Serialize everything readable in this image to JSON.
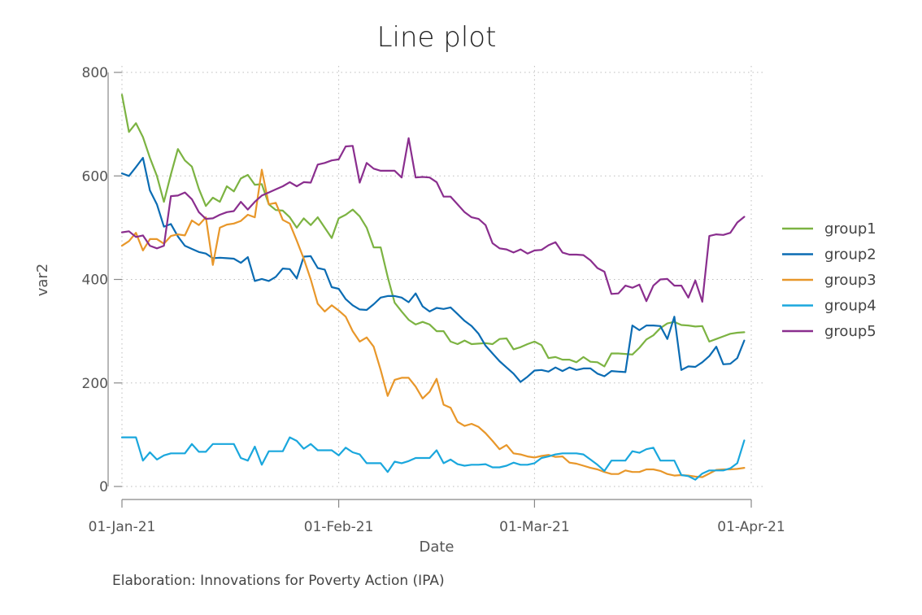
{
  "chart_data": {
    "type": "line",
    "title": "Line plot",
    "xlabel": "Date",
    "ylabel": "var2",
    "caption": "Elaboration: Innovations for Poverty Action (IPA)",
    "ylim": [
      0,
      800
    ],
    "xlim_days": [
      0,
      90
    ],
    "yticks": [
      0,
      200,
      400,
      600,
      800
    ],
    "xticks": [
      {
        "day": 0,
        "label": "01-Jan-21"
      },
      {
        "day": 31,
        "label": "01-Feb-21"
      },
      {
        "day": 59,
        "label": "01-Mar-21"
      },
      {
        "day": 90,
        "label": "01-Apr-21"
      }
    ],
    "grid": true,
    "legend_position": "right",
    "series": [
      {
        "name": "group1",
        "color": "#7cb342",
        "values": [
          757,
          685,
          702,
          675,
          635,
          600,
          550,
          603,
          652,
          630,
          618,
          575,
          542,
          558,
          550,
          580,
          570,
          595,
          602,
          583,
          584,
          545,
          534,
          533,
          520,
          500,
          518,
          505,
          520,
          500,
          480,
          518,
          525,
          535,
          522,
          500,
          462,
          462,
          405,
          355,
          338,
          322,
          313,
          318,
          313,
          300,
          300,
          280,
          275,
          282,
          275,
          276,
          277,
          275,
          285,
          286,
          265,
          269,
          275,
          280,
          273,
          248,
          250,
          245,
          245,
          240,
          250,
          241,
          240,
          232,
          257,
          257,
          256,
          255,
          268,
          284,
          292,
          306,
          315,
          318,
          312,
          311,
          309,
          310,
          280,
          285,
          290,
          295,
          297,
          298
        ]
      },
      {
        "name": "group2",
        "color": "#0b6cb3",
        "values": [
          605,
          600,
          617,
          635,
          572,
          545,
          502,
          507,
          483,
          465,
          459,
          453,
          450,
          441,
          442,
          441,
          440,
          432,
          443,
          397,
          401,
          397,
          405,
          421,
          420,
          402,
          444,
          445,
          422,
          419,
          385,
          382,
          362,
          350,
          342,
          341,
          352,
          365,
          368,
          368,
          365,
          356,
          373,
          348,
          338,
          345,
          343,
          346,
          333,
          320,
          310,
          295,
          272,
          257,
          242,
          230,
          218,
          202,
          212,
          224,
          225,
          222,
          230,
          223,
          230,
          225,
          228,
          228,
          218,
          213,
          223,
          222,
          221,
          311,
          302,
          311,
          311,
          310,
          285,
          328,
          225,
          232,
          231,
          240,
          252,
          270,
          236,
          237,
          248,
          282
        ]
      },
      {
        "name": "group3",
        "color": "#e8972a",
        "values": [
          465,
          474,
          490,
          456,
          478,
          478,
          469,
          484,
          487,
          485,
          514,
          505,
          520,
          428,
          500,
          506,
          508,
          513,
          525,
          520,
          612,
          545,
          548,
          515,
          508,
          475,
          440,
          400,
          353,
          338,
          350,
          340,
          328,
          300,
          280,
          288,
          270,
          225,
          175,
          206,
          210,
          210,
          193,
          170,
          183,
          208,
          158,
          152,
          125,
          117,
          121,
          115,
          103,
          88,
          72,
          80,
          64,
          62,
          58,
          56,
          59,
          61,
          57,
          58,
          46,
          44,
          40,
          36,
          33,
          28,
          24,
          24,
          31,
          28,
          28,
          33,
          33,
          30,
          24,
          21,
          22,
          21,
          19,
          18,
          25,
          32,
          33,
          33,
          34,
          36
        ]
      },
      {
        "name": "group4",
        "color": "#1aa7dd",
        "values": [
          95,
          95,
          95,
          50,
          66,
          52,
          60,
          64,
          64,
          64,
          82,
          67,
          67,
          82,
          82,
          82,
          82,
          55,
          50,
          77,
          42,
          68,
          68,
          68,
          95,
          88,
          73,
          82,
          70,
          70,
          70,
          60,
          75,
          66,
          62,
          45,
          45,
          45,
          28,
          48,
          45,
          49,
          55,
          55,
          55,
          70,
          45,
          52,
          43,
          40,
          42,
          42,
          43,
          37,
          37,
          40,
          46,
          42,
          42,
          45,
          55,
          58,
          62,
          64,
          64,
          64,
          62,
          52,
          42,
          30,
          50,
          50,
          50,
          68,
          65,
          72,
          75,
          50,
          50,
          50,
          22,
          20,
          13,
          25,
          31,
          31,
          31,
          35,
          45,
          89
        ]
      },
      {
        "name": "group5",
        "color": "#8a2e8e",
        "values": [
          491,
          493,
          482,
          485,
          465,
          460,
          465,
          561,
          562,
          568,
          555,
          530,
          517,
          518,
          525,
          530,
          532,
          550,
          535,
          550,
          562,
          568,
          574,
          580,
          588,
          580,
          588,
          587,
          622,
          625,
          630,
          632,
          657,
          658,
          587,
          625,
          614,
          610,
          610,
          610,
          597,
          673,
          597,
          598,
          597,
          588,
          560,
          560,
          545,
          530,
          520,
          517,
          505,
          470,
          460,
          458,
          452,
          458,
          450,
          456,
          457,
          466,
          472,
          452,
          448,
          448,
          447,
          437,
          422,
          415,
          372,
          373,
          388,
          384,
          390,
          358,
          388,
          400,
          401,
          388,
          388,
          365,
          398,
          357,
          484,
          487,
          486,
          490,
          510,
          521
        ]
      }
    ]
  }
}
